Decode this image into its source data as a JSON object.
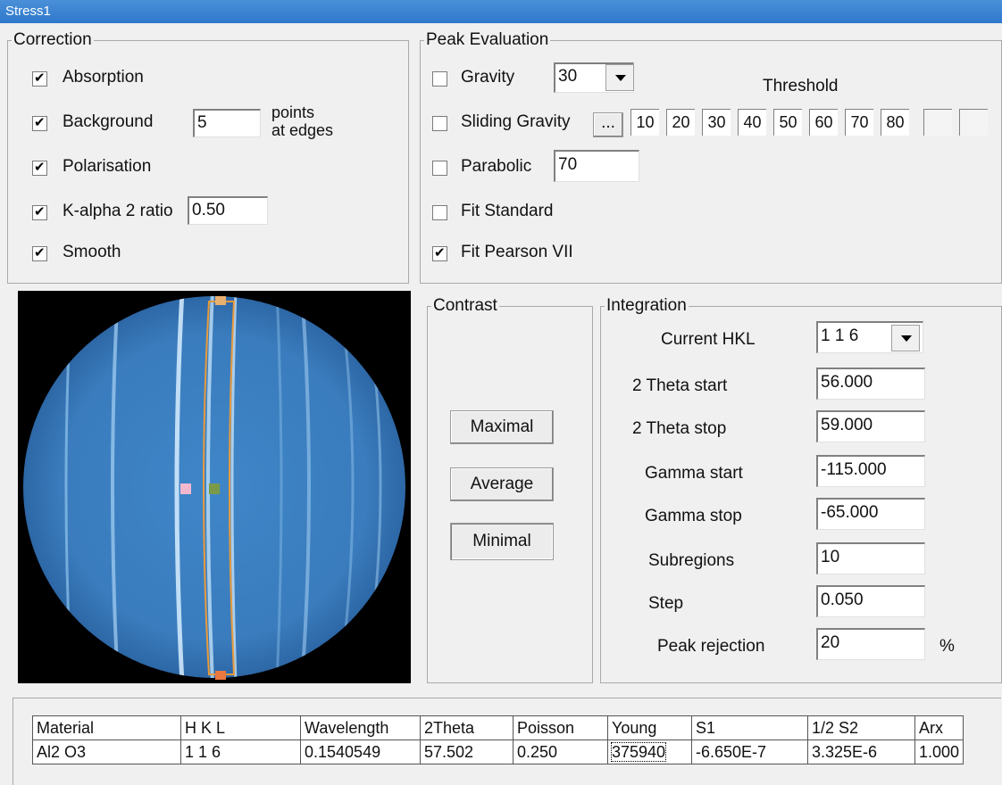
{
  "window": {
    "title": "Stress1"
  },
  "correction": {
    "legend": "Correction",
    "items": [
      {
        "label": "Absorption",
        "checked": true
      },
      {
        "label": "Background",
        "checked": true
      },
      {
        "label": "Polarisation",
        "checked": true
      },
      {
        "label": "K-alpha 2 ratio",
        "checked": true
      },
      {
        "label": "Smooth",
        "checked": true
      }
    ],
    "background_points": "5",
    "points_label_1": "points",
    "points_label_2": "at edges",
    "k_alpha_ratio": "0.50"
  },
  "peak": {
    "legend": "Peak Evaluation",
    "gravity": {
      "label": "Gravity",
      "checked": false,
      "value": "30"
    },
    "threshold_label": "Threshold",
    "sliding": {
      "label": "Sliding Gravity",
      "checked": false,
      "dots": "...",
      "thresholds": [
        "10",
        "20",
        "30",
        "40",
        "50",
        "60",
        "70",
        "80",
        "",
        ""
      ]
    },
    "parabolic": {
      "label": "Parabolic",
      "checked": false,
      "value": "70"
    },
    "fit_standard": {
      "label": "Fit Standard",
      "checked": false
    },
    "fit_pearson": {
      "label": "Fit Pearson VII",
      "checked": true
    }
  },
  "contrast": {
    "legend": "Contrast",
    "maximal": "Maximal",
    "average": "Average",
    "minimal": "Minimal"
  },
  "integration": {
    "legend": "Integration",
    "current_hkl_label": "Current HKL",
    "current_hkl": "1 1 6",
    "theta_start_label": "2 Theta start",
    "theta_start": "56.000",
    "theta_stop_label": "2 Theta stop",
    "theta_stop": "59.000",
    "gamma_start_label": "Gamma start",
    "gamma_start": "-115.000",
    "gamma_stop_label": "Gamma stop",
    "gamma_stop": "-65.000",
    "subregions_label": "Subregions",
    "subregions": "10",
    "step_label": "Step",
    "step": "0.050",
    "peak_rejection_label": "Peak rejection",
    "peak_rejection": "20",
    "percent": "%"
  },
  "table": {
    "headers": [
      "Material",
      "H  K  L",
      "Wavelength",
      "2Theta",
      "Poisson",
      "Young",
      "S1",
      "1/2 S2",
      "Arx"
    ],
    "row": [
      "Al2 O3",
      "1 1 6",
      "0.1540549",
      "57.502",
      "0.250",
      "375940",
      "-6.650E-7",
      "3.325E-6",
      "1.000"
    ]
  },
  "colors": {
    "title_bar": "#2e78cc",
    "image_bg": "#000000",
    "detector_blue": "#3b7fc0",
    "roi_outline": "#e89a3c"
  }
}
